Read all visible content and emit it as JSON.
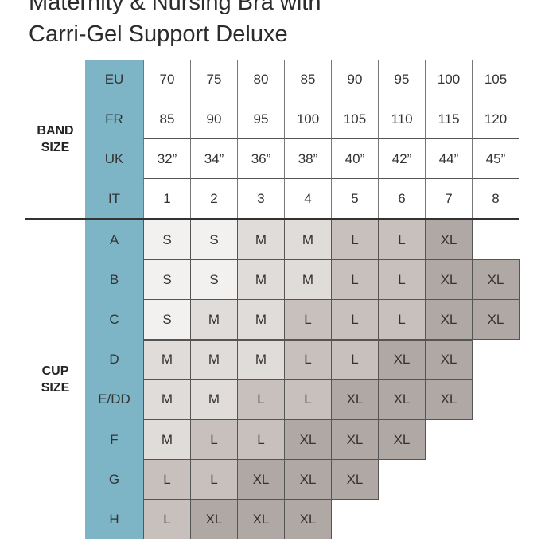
{
  "title": {
    "line1": "Maternity & Nursing Bra with",
    "line2": "Carri-Gel Support Deluxe"
  },
  "band_label": {
    "line1": "BAND",
    "line2": "SIZE"
  },
  "cup_label": {
    "line1": "CUP",
    "line2": "SIZE"
  },
  "colors": {
    "header": "#7db5c7",
    "S": "#f2f1f0",
    "M": "#e0dcda",
    "L": "#c8c0bd",
    "XL": "#b0a8a5"
  },
  "band_rows": [
    {
      "label": "EU",
      "values": [
        "70",
        "75",
        "80",
        "85",
        "90",
        "95",
        "100",
        "105"
      ]
    },
    {
      "label": "FR",
      "values": [
        "85",
        "90",
        "95",
        "100",
        "105",
        "110",
        "115",
        "120"
      ]
    },
    {
      "label": "UK",
      "values": [
        "32”",
        "34”",
        "36”",
        "38”",
        "40”",
        "42”",
        "44”",
        "45”"
      ]
    },
    {
      "label": "IT",
      "values": [
        "1",
        "2",
        "3",
        "4",
        "5",
        "6",
        "7",
        "8"
      ]
    }
  ],
  "cup_rows": [
    {
      "label": "A",
      "values": [
        "S",
        "S",
        "M",
        "M",
        "L",
        "L",
        "XL",
        ""
      ]
    },
    {
      "label": "B",
      "values": [
        "S",
        "S",
        "M",
        "M",
        "L",
        "L",
        "XL",
        "XL"
      ]
    },
    {
      "label": "C",
      "values": [
        "S",
        "M",
        "M",
        "L",
        "L",
        "L",
        "XL",
        "XL"
      ]
    },
    {
      "label": "D",
      "values": [
        "M",
        "M",
        "M",
        "L",
        "L",
        "XL",
        "XL",
        ""
      ]
    },
    {
      "label": "E/DD",
      "values": [
        "M",
        "M",
        "L",
        "L",
        "XL",
        "XL",
        "XL",
        ""
      ]
    },
    {
      "label": "F",
      "values": [
        "M",
        "L",
        "L",
        "XL",
        "XL",
        "XL",
        "",
        ""
      ]
    },
    {
      "label": "G",
      "values": [
        "L",
        "L",
        "XL",
        "XL",
        "XL",
        "",
        "",
        ""
      ]
    },
    {
      "label": "H",
      "values": [
        "L",
        "XL",
        "XL",
        "XL",
        "",
        "",
        "",
        ""
      ]
    }
  ]
}
